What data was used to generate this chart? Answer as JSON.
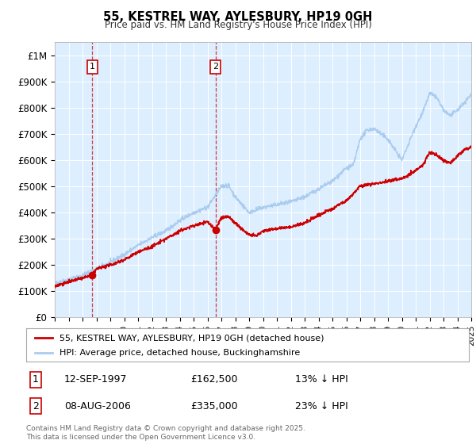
{
  "title": "55, KESTREL WAY, AYLESBURY, HP19 0GH",
  "subtitle": "Price paid vs. HM Land Registry's House Price Index (HPI)",
  "ylim": [
    0,
    1050000
  ],
  "yticks": [
    0,
    100000,
    200000,
    300000,
    400000,
    500000,
    600000,
    700000,
    800000,
    900000,
    1000000
  ],
  "ytick_labels": [
    "£0",
    "£100K",
    "£200K",
    "£300K",
    "£400K",
    "£500K",
    "£600K",
    "£700K",
    "£800K",
    "£900K",
    "£1M"
  ],
  "x_start_year": 1995,
  "x_end_year": 2025,
  "hpi_color": "#aaccee",
  "price_color": "#cc0000",
  "sale1_year": 1997.71,
  "sale1_price": 162500,
  "sale1_label": "1",
  "sale1_date": "12-SEP-1997",
  "sale1_hpi_pct": "13%",
  "sale2_year": 2006.58,
  "sale2_price": 335000,
  "sale2_label": "2",
  "sale2_date": "08-AUG-2006",
  "sale2_hpi_pct": "23%",
  "legend_label_price": "55, KESTREL WAY, AYLESBURY, HP19 0GH (detached house)",
  "legend_label_hpi": "HPI: Average price, detached house, Buckinghamshire",
  "footnote": "Contains HM Land Registry data © Crown copyright and database right 2025.\nThis data is licensed under the Open Government Licence v3.0.",
  "bg_color": "#ffffff",
  "plot_bg_color": "#ddeeff",
  "grid_color": "#ffffff",
  "hpi_key_years": [
    1995,
    1996,
    1997,
    1998,
    1999,
    2000,
    2001,
    2002,
    2003,
    2004,
    2005,
    2006,
    2007,
    2007.5,
    2008,
    2009,
    2010,
    2011,
    2012,
    2013,
    2014,
    2015,
    2016,
    2016.5,
    2017,
    2017.5,
    2018,
    2019,
    2020,
    2021,
    2021.5,
    2022,
    2022.5,
    2023,
    2023.5,
    2024,
    2024.5,
    2025
  ],
  "hpi_key_vals": [
    130000,
    145000,
    160000,
    185000,
    210000,
    240000,
    275000,
    305000,
    330000,
    370000,
    400000,
    420000,
    500000,
    505000,
    460000,
    400000,
    420000,
    430000,
    440000,
    460000,
    490000,
    520000,
    570000,
    580000,
    680000,
    715000,
    720000,
    680000,
    600000,
    730000,
    780000,
    855000,
    840000,
    790000,
    770000,
    790000,
    820000,
    850000
  ],
  "prop_key_years": [
    1995,
    1996,
    1997,
    1997.71,
    1998,
    1999,
    2000,
    2001,
    2002,
    2003,
    2004,
    2005,
    2006,
    2006.58,
    2007,
    2007.5,
    2008,
    2009,
    2009.5,
    2010,
    2011,
    2012,
    2013,
    2014,
    2015,
    2016,
    2017,
    2018,
    2019,
    2020,
    2021,
    2021.5,
    2022,
    2022.5,
    2023,
    2023.5,
    2024,
    2024.5,
    2025
  ],
  "prop_key_vals": [
    120000,
    135000,
    150000,
    162500,
    185000,
    200000,
    220000,
    250000,
    270000,
    300000,
    330000,
    350000,
    365000,
    335000,
    380000,
    385000,
    360000,
    315000,
    310000,
    330000,
    340000,
    345000,
    360000,
    390000,
    415000,
    445000,
    500000,
    510000,
    520000,
    530000,
    560000,
    580000,
    630000,
    620000,
    600000,
    590000,
    615000,
    640000,
    650000
  ]
}
